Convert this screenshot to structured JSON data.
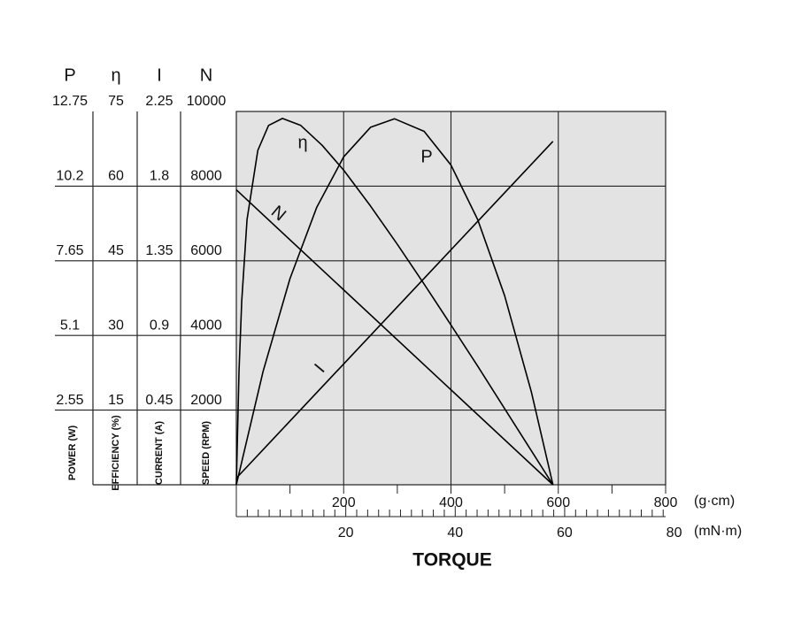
{
  "chart_data": {
    "type": "line",
    "axes": [
      {
        "symbol": "P",
        "title": "POWER (W)",
        "ylim": [
          0,
          12.75
        ],
        "yticks": [
          2.55,
          5.1,
          7.65,
          10.2,
          12.75
        ]
      },
      {
        "symbol": "η",
        "title": "EFFICIENCY (%)",
        "ylim": [
          0,
          75
        ],
        "yticks": [
          15,
          30,
          45,
          60,
          75
        ]
      },
      {
        "symbol": "I",
        "title": "CURRENT (A)",
        "ylim": [
          0,
          2.25
        ],
        "yticks": [
          0.45,
          0.9,
          1.35,
          1.8,
          2.25
        ]
      },
      {
        "symbol": "N",
        "title": "SPEED (RPM)",
        "ylim": [
          0,
          10000
        ],
        "yticks": [
          2000,
          4000,
          6000,
          8000,
          10000
        ]
      }
    ],
    "xlim": [
      0,
      800
    ],
    "xticks": [
      200,
      400,
      600,
      800
    ],
    "xminor": [
      0,
      100,
      300,
      500,
      700
    ],
    "xunit": "(g·cm)",
    "x2lim": [
      0,
      78.45
    ],
    "x2ticks": [
      20,
      40,
      60,
      80
    ],
    "x2minor": [
      0,
      2,
      4,
      6,
      8,
      10,
      12,
      14,
      16,
      18,
      22,
      24,
      26,
      28,
      30,
      32,
      34,
      36,
      38,
      42,
      44,
      46,
      48,
      50,
      52,
      54,
      56,
      58,
      62,
      64,
      66,
      68,
      70,
      72,
      74,
      76,
      78
    ],
    "x2unit": "(mN·m)",
    "xlabel": "TORQUE",
    "series": [
      {
        "name": "η",
        "axis": 1,
        "color": "#000000",
        "x": [
          0,
          5,
          10,
          20,
          40,
          60,
          86,
          120,
          160,
          200,
          250,
          300,
          350,
          400,
          450,
          500,
          550,
          590
        ],
        "values": [
          0,
          22.7,
          36.9,
          53.3,
          67.2,
          72.2,
          73.6,
          72.2,
          68.2,
          63.2,
          56.0,
          48.3,
          40.3,
          32.1,
          23.8,
          15.3,
          6.8,
          0
        ]
      },
      {
        "name": "P",
        "axis": 0,
        "color": "#000000",
        "x": [
          0,
          50,
          100,
          150,
          200,
          250,
          295,
          350,
          400,
          450,
          500,
          550,
          590
        ],
        "values": [
          0,
          3.88,
          7.04,
          9.48,
          11.2,
          12.21,
          12.5,
          12.07,
          10.92,
          9.05,
          6.46,
          3.16,
          0
        ]
      },
      {
        "name": "I",
        "axis": 2,
        "color": "#000000",
        "x": [
          0,
          590
        ],
        "values": [
          0.04,
          2.07
        ]
      },
      {
        "name": "N",
        "axis": 3,
        "color": "#000000",
        "x": [
          0,
          590
        ],
        "values": [
          7900,
          0
        ]
      }
    ],
    "grid": true
  }
}
